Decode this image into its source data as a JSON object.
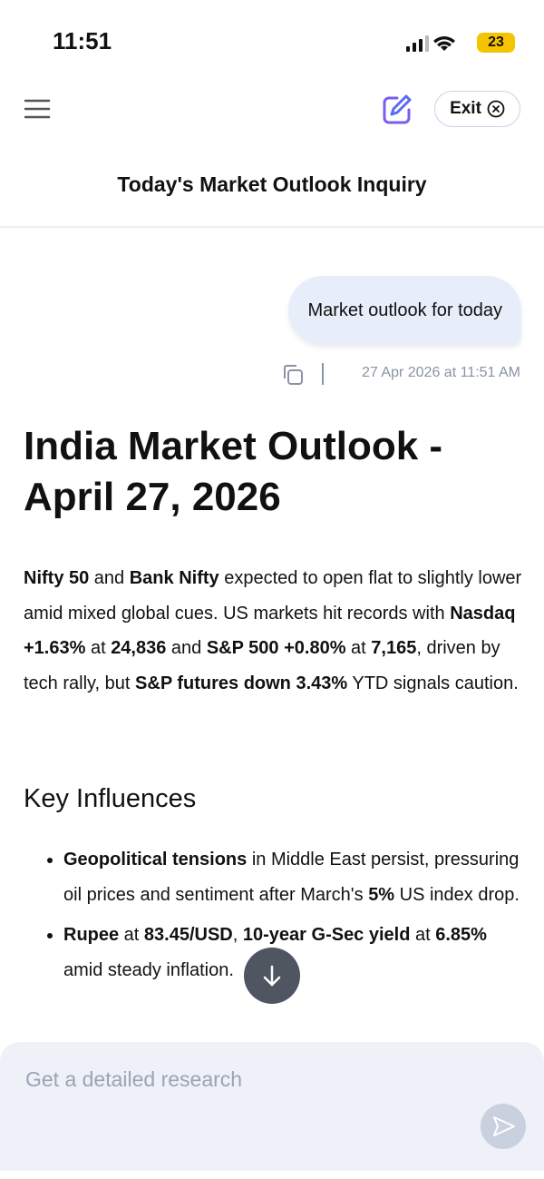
{
  "status_bar": {
    "time": "11:51",
    "battery": "23"
  },
  "header": {
    "exit_button": "Exit",
    "title": "Today's Market Outlook Inquiry"
  },
  "conversation": {
    "user_message": {
      "text": "Market outlook for today",
      "timestamp": "27 Apr 2026 at 11:51 AM"
    },
    "response": {
      "heading": "India Market Outlook - April 27, 2026",
      "paragraph": [
        {
          "text": "Nifty 50",
          "bold": true
        },
        {
          "text": " and ",
          "bold": false
        },
        {
          "text": "Bank Nifty",
          "bold": true
        },
        {
          "text": " expected to open flat to slightly lower amid mixed global cues. US markets hit records with ",
          "bold": false
        },
        {
          "text": "Nasdaq +1.63%",
          "bold": true
        },
        {
          "text": " at ",
          "bold": false
        },
        {
          "text": "24,836",
          "bold": true
        },
        {
          "text": " and ",
          "bold": false
        },
        {
          "text": "S&P 500 +0.80%",
          "bold": true
        },
        {
          "text": " at ",
          "bold": false
        },
        {
          "text": "7,165",
          "bold": true
        },
        {
          "text": ", driven by tech rally, but ",
          "bold": false
        },
        {
          "text": "S&P futures down 3.43%",
          "bold": true
        },
        {
          "text": " YTD signals caution.",
          "bold": false
        }
      ],
      "section_heading": "Key Influences",
      "bullets": [
        [
          {
            "text": "Geopolitical tensions",
            "bold": true
          },
          {
            "text": " in Middle East persist, pressuring oil prices and sentiment after March's ",
            "bold": false
          },
          {
            "text": "5%",
            "bold": true
          },
          {
            "text": " US index drop.",
            "bold": false
          }
        ],
        [
          {
            "text": "Rupee",
            "bold": true
          },
          {
            "text": " at ",
            "bold": false
          },
          {
            "text": "83.45/USD",
            "bold": true
          },
          {
            "text": ", ",
            "bold": false
          },
          {
            "text": "10-year G-Sec yield",
            "bold": true
          },
          {
            "text": " at ",
            "bold": false
          },
          {
            "text": "6.85%",
            "bold": true
          },
          {
            "text": " amid steady inflation.",
            "bold": false
          }
        ]
      ]
    }
  },
  "input": {
    "placeholder": "Get a detailed research"
  }
}
